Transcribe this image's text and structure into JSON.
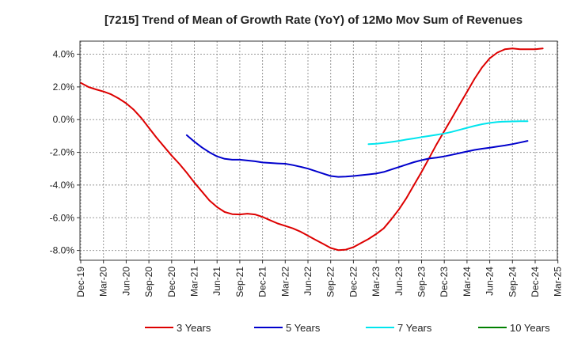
{
  "chart_data": {
    "type": "line",
    "title": "[7215]  Trend of Mean of Growth Rate (YoY) of 12Mo Mov Sum of Revenues",
    "xlabel": "",
    "ylabel": "",
    "ylim": [
      -8.6,
      4.8
    ],
    "y_ticks": [
      4.0,
      2.0,
      0.0,
      -2.0,
      -4.0,
      -6.0,
      -8.0
    ],
    "y_tick_labels": [
      "4.0%",
      "2.0%",
      "0.0%",
      "-2.0%",
      "-4.0%",
      "-6.0%",
      "-8.0%"
    ],
    "x_tick_labels": [
      "Dec-19",
      "Mar-20",
      "Jun-20",
      "Sep-20",
      "Dec-20",
      "Mar-21",
      "Jun-21",
      "Sep-21",
      "Dec-21",
      "Mar-22",
      "Jun-22",
      "Sep-22",
      "Dec-22",
      "Mar-23",
      "Jun-23",
      "Sep-23",
      "Dec-23",
      "Mar-24",
      "Jun-24",
      "Sep-24",
      "Dec-24",
      "Mar-25"
    ],
    "x_start_month": "Dec-19",
    "grid": true,
    "legend_position": "bottom",
    "series": [
      {
        "name": "3 Years",
        "color": "#dd0000",
        "start_month_index": 0,
        "values": [
          2.25,
          2.0,
          1.85,
          1.72,
          1.55,
          1.3,
          1.0,
          0.6,
          0.1,
          -0.5,
          -1.1,
          -1.65,
          -2.2,
          -2.7,
          -3.25,
          -3.85,
          -4.4,
          -4.95,
          -5.35,
          -5.65,
          -5.78,
          -5.8,
          -5.75,
          -5.8,
          -5.95,
          -6.15,
          -6.35,
          -6.5,
          -6.65,
          -6.85,
          -7.1,
          -7.35,
          -7.6,
          -7.85,
          -7.98,
          -7.95,
          -7.8,
          -7.55,
          -7.3,
          -7.0,
          -6.65,
          -6.1,
          -5.5,
          -4.8,
          -4.0,
          -3.2,
          -2.35,
          -1.5,
          -0.7,
          0.1,
          0.9,
          1.7,
          2.5,
          3.2,
          3.75,
          4.1,
          4.3,
          4.35,
          4.3,
          4.3,
          4.3,
          4.35
        ]
      },
      {
        "name": "5 Years",
        "color": "#0000cc",
        "start_month_index": 14,
        "values": [
          -0.95,
          -1.35,
          -1.7,
          -2.0,
          -2.25,
          -2.4,
          -2.45,
          -2.45,
          -2.5,
          -2.55,
          -2.62,
          -2.65,
          -2.68,
          -2.7,
          -2.78,
          -2.88,
          -3.0,
          -3.15,
          -3.3,
          -3.45,
          -3.5,
          -3.48,
          -3.45,
          -3.4,
          -3.35,
          -3.3,
          -3.2,
          -3.05,
          -2.9,
          -2.75,
          -2.6,
          -2.48,
          -2.38,
          -2.32,
          -2.25,
          -2.15,
          -2.05,
          -1.95,
          -1.85,
          -1.78,
          -1.72,
          -1.65,
          -1.58,
          -1.5,
          -1.4,
          -1.3
        ]
      },
      {
        "name": "7 Years",
        "color": "#00e5ee",
        "start_month_index": 38,
        "values": [
          -1.5,
          -1.48,
          -1.43,
          -1.37,
          -1.3,
          -1.22,
          -1.15,
          -1.07,
          -1.0,
          -0.93,
          -0.85,
          -0.75,
          -0.63,
          -0.5,
          -0.38,
          -0.28,
          -0.2,
          -0.15,
          -0.12,
          -0.11,
          -0.1,
          -0.1
        ]
      },
      {
        "name": "10 Years",
        "color": "#008000",
        "start_month_index": 0,
        "values": []
      }
    ]
  }
}
